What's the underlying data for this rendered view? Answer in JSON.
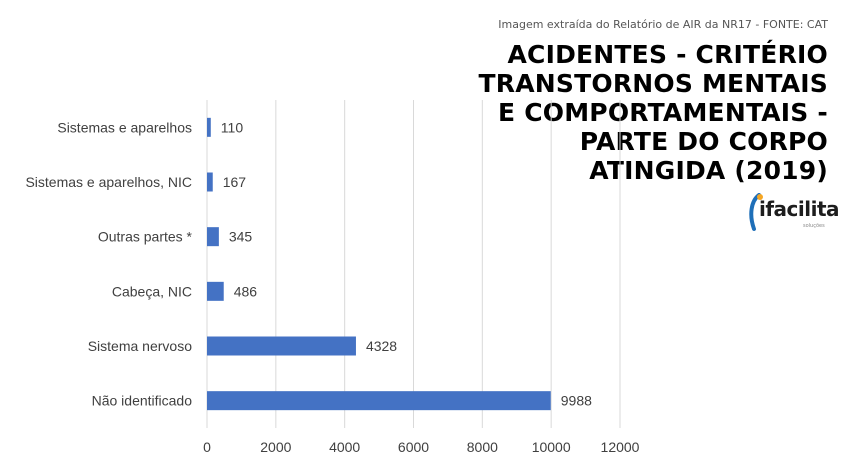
{
  "source_note": "Imagem extraída do Relatório de AIR da NR17 - FONTE: CAT",
  "title_lines": [
    "ACIDENTES - CRITÉRIO",
    "TRANSTORNOS MENTAIS",
    "E COMPORTAMENTAIS -",
    "PARTE DO CORPO",
    "ATINGIDA (2019)"
  ],
  "logo": {
    "text": "ifacilita",
    "sub": "soluções"
  },
  "colors": {
    "bar": "#4472c4",
    "grid": "#d9d9d9",
    "text": "#404040"
  },
  "chart_data": {
    "type": "bar",
    "orientation": "horizontal",
    "categories": [
      "Sistemas e aparelhos",
      "Sistemas e aparelhos, NIC",
      "Outras partes *",
      "Cabeça, NIC",
      "Sistema nervoso",
      "Não identificado"
    ],
    "values": [
      110,
      167,
      345,
      486,
      4328,
      9988
    ],
    "data_labels": [
      "110",
      "167",
      "345",
      "486",
      "4328",
      "9988"
    ],
    "xticks": [
      0,
      2000,
      4000,
      6000,
      8000,
      10000,
      12000
    ],
    "xlim": [
      0,
      12000
    ],
    "grid": true
  }
}
